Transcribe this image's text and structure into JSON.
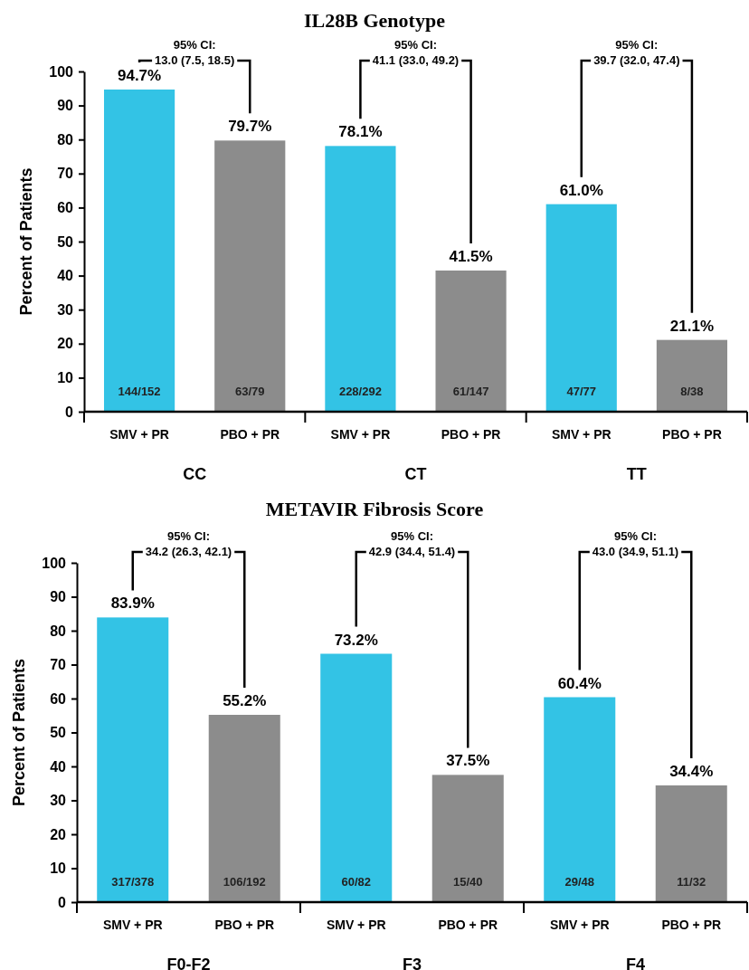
{
  "chart_data": [
    {
      "type": "bar",
      "title": "IL28B Genotype",
      "ylabel": "Percent of Patients",
      "categories": [
        "SMV + PR",
        "PBO + PR",
        "SMV + PR",
        "PBO + PR",
        "SMV + PR",
        "PBO + PR"
      ],
      "values": [
        94.7,
        79.7,
        78.1,
        41.5,
        61.0,
        21.1
      ],
      "colors": [
        "#33c3e5",
        "#8c8c8c",
        "#33c3e5",
        "#8c8c8c",
        "#33c3e5",
        "#8c8c8c"
      ],
      "value_labels": [
        "94.7%",
        "79.7%",
        "78.1%",
        "41.5%",
        "61.0%",
        "21.1%"
      ],
      "ylim": [
        0,
        100
      ],
      "yticks": [
        0,
        10,
        20,
        30,
        40,
        50,
        60,
        70,
        80,
        90,
        100
      ],
      "grid": false,
      "annotations": [
        "CC",
        "CT",
        "TT",
        "144/152",
        "63/79",
        "228/292",
        "61/147",
        "47/77",
        "8/38",
        "95% CI:\n13.0 (7.5, 18.5)",
        "95% CI:\n41.1 (33.0, 49.2)",
        "95% CI:\n39.7 (32.0, 47.4)"
      ]
    },
    {
      "type": "bar",
      "title": "METAVIR Fibrosis Score",
      "ylabel": "Percent of Patients",
      "categories": [
        "SMV + PR",
        "PBO + PR",
        "SMV + PR",
        "PBO + PR",
        "SMV + PR",
        "PBO + PR"
      ],
      "values": [
        83.9,
        55.2,
        73.2,
        37.5,
        60.4,
        34.4
      ],
      "colors": [
        "#33c3e5",
        "#8c8c8c",
        "#33c3e5",
        "#8c8c8c",
        "#33c3e5",
        "#8c8c8c"
      ],
      "value_labels": [
        "83.9%",
        "55.2%",
        "73.2%",
        "37.5%",
        "60.4%",
        "34.4%"
      ],
      "ylim": [
        0,
        100
      ],
      "yticks": [
        0,
        10,
        20,
        30,
        40,
        50,
        60,
        70,
        80,
        90,
        100
      ],
      "grid": false,
      "annotations": [
        "F0-F2",
        "F3",
        "F4",
        "317/378",
        "106/192",
        "60/82",
        "15/40",
        "29/48",
        "11/32",
        "95% CI:\n34.2 (26.3, 42.1)",
        "95% CI:\n42.9 (34.4, 51.4)",
        "95% CI:\n43.0 (34.9, 51.1)"
      ]
    }
  ]
}
